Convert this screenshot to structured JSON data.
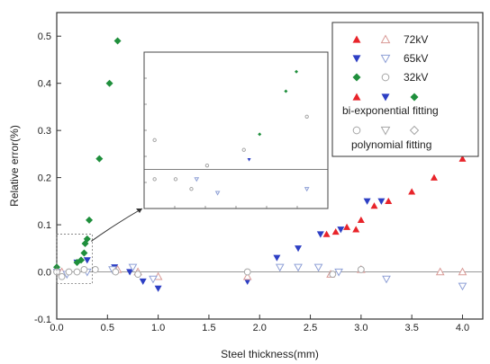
{
  "chart_data": {
    "type": "scatter",
    "xlabel": "Steel thickness(mm)",
    "ylabel": "Relative error(%)",
    "xlim": [
      0.0,
      4.2
    ],
    "ylim": [
      -0.1,
      0.55
    ],
    "xticks": [
      "0.0",
      "0.5",
      "1.0",
      "1.5",
      "2.0",
      "2.5",
      "3.0",
      "3.5",
      "4.0"
    ],
    "yticks": [
      "-0.1",
      "0.0",
      "0.1",
      "0.2",
      "0.3",
      "0.4",
      "0.5"
    ],
    "reference_line_y": 0.0,
    "legend": {
      "placement": "top-right",
      "entries": [
        "72kV",
        "65kV",
        "32kV"
      ],
      "fit_labels": [
        "bi-exponential fitting",
        "polynomial fitting"
      ]
    },
    "colors": {
      "red": "#e8242a",
      "blue": "#2d3fc4",
      "green": "#1f8f3c",
      "light_red": "#d99a96",
      "light_blue": "#8fa0d6",
      "light_green": "#8ab89a",
      "hollow_gray": "#a6a6a6",
      "frame": "#333333"
    },
    "series": [
      {
        "name": "72kV",
        "fitting": "bi-exponential",
        "marker": "triangle-up",
        "color": "red",
        "x": [
          2.66,
          2.75,
          2.86,
          2.95,
          3.0,
          3.13,
          3.27,
          3.5,
          3.72,
          4.0
        ],
        "y": [
          0.08,
          0.085,
          0.095,
          0.09,
          0.11,
          0.14,
          0.15,
          0.17,
          0.2,
          0.24
        ]
      },
      {
        "name": "65kV",
        "fitting": "bi-exponential",
        "marker": "triangle-down",
        "color": "blue",
        "x": [
          0.0,
          0.2,
          0.3,
          0.57,
          0.72,
          0.85,
          1.0,
          1.88,
          2.17,
          2.38,
          2.6,
          2.8,
          3.06,
          3.2
        ],
        "y": [
          0.0,
          0.02,
          0.025,
          0.01,
          0.0,
          -0.02,
          -0.035,
          -0.02,
          0.03,
          0.05,
          0.08,
          0.09,
          0.15,
          0.15
        ]
      },
      {
        "name": "32kV",
        "fitting": "bi-exponential",
        "marker": "diamond",
        "color": "green",
        "x": [
          0.0,
          0.2,
          0.24,
          0.27,
          0.28,
          0.3,
          0.32,
          0.42,
          0.52,
          0.6
        ],
        "y": [
          0.01,
          0.02,
          0.025,
          0.04,
          0.06,
          0.07,
          0.11,
          0.24,
          0.4,
          0.49
        ]
      },
      {
        "name": "72kV",
        "fitting": "polynomial",
        "marker": "triangle-up-hollow",
        "color": "light_red",
        "x": [
          0.05,
          0.6,
          0.8,
          1.0,
          1.88,
          2.7,
          3.0,
          3.78,
          4.0
        ],
        "y": [
          0.0,
          0.005,
          0.0,
          -0.01,
          -0.01,
          -0.005,
          0.005,
          0.0,
          0.0
        ]
      },
      {
        "name": "65kV",
        "fitting": "polynomial",
        "marker": "triangle-down-hollow",
        "color": "light_blue",
        "x": [
          0.1,
          0.3,
          0.55,
          0.75,
          0.95,
          2.2,
          2.38,
          2.58,
          2.78,
          3.25,
          4.0
        ],
        "y": [
          -0.005,
          0.0,
          0.005,
          0.01,
          -0.015,
          0.01,
          0.01,
          0.01,
          0.0,
          -0.015,
          -0.03
        ]
      },
      {
        "name": "32kV",
        "fitting": "polynomial",
        "marker": "circle-hollow",
        "color": "hollow_gray",
        "x": [
          0.0,
          0.05,
          0.12,
          0.2,
          0.27,
          0.38,
          0.58,
          0.8,
          1.88,
          2.72,
          3.0
        ],
        "y": [
          0.0,
          -0.01,
          0.0,
          0.0,
          0.005,
          0.005,
          0.0,
          -0.005,
          0.0,
          -0.005,
          0.005
        ]
      }
    ],
    "inset": {
      "description_free": true,
      "xlim": [
        0.0,
        0.35
      ],
      "ylim": [
        -0.02,
        0.06
      ],
      "reference_line_y": 0.0,
      "points": [
        {
          "x": 0.02,
          "y": 0.015,
          "series": 5
        },
        {
          "x": 0.02,
          "y": -0.005,
          "series": 5
        },
        {
          "x": 0.06,
          "y": -0.005,
          "series": 5
        },
        {
          "x": 0.09,
          "y": -0.01,
          "series": 5
        },
        {
          "x": 0.1,
          "y": -0.005,
          "series": 4
        },
        {
          "x": 0.12,
          "y": 0.002,
          "series": 5
        },
        {
          "x": 0.14,
          "y": -0.012,
          "series": 4
        },
        {
          "x": 0.19,
          "y": 0.01,
          "series": 5
        },
        {
          "x": 0.2,
          "y": 0.005,
          "series": 1
        },
        {
          "x": 0.22,
          "y": 0.018,
          "series": 2
        },
        {
          "x": 0.27,
          "y": 0.04,
          "series": 2
        },
        {
          "x": 0.29,
          "y": 0.05,
          "series": 2
        },
        {
          "x": 0.31,
          "y": 0.027,
          "series": 5
        },
        {
          "x": 0.31,
          "y": -0.01,
          "series": 4
        }
      ]
    }
  }
}
